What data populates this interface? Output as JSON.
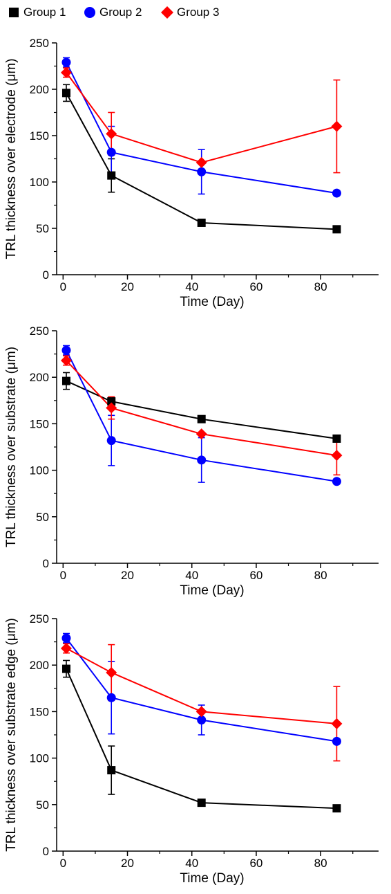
{
  "legend": [
    {
      "name": "Group 1",
      "marker": "square",
      "color": "#000000"
    },
    {
      "name": "Group 2",
      "marker": "circle",
      "color": "#0000ff"
    },
    {
      "name": "Group 3",
      "marker": "diamond",
      "color": "#ff0000"
    }
  ],
  "chart_data": [
    {
      "type": "line",
      "title": "",
      "xlabel": "Time (Day)",
      "ylabel": "TRL thickness over electrode (μm)",
      "xlim": [
        -2,
        98
      ],
      "ylim": [
        0,
        250
      ],
      "xticks": [
        0,
        20,
        40,
        60,
        80
      ],
      "yticks": [
        0,
        50,
        100,
        150,
        200,
        250
      ],
      "x": [
        1,
        15,
        43,
        85
      ],
      "series": [
        {
          "name": "Group 1",
          "color": "#000000",
          "marker": "square",
          "values": [
            196,
            107,
            56,
            49
          ],
          "err": [
            9,
            18,
            0,
            0
          ]
        },
        {
          "name": "Group 2",
          "color": "#0000ff",
          "marker": "circle",
          "values": [
            229,
            132,
            111,
            88
          ],
          "err": [
            5,
            28,
            24,
            0
          ]
        },
        {
          "name": "Group 3",
          "color": "#ff0000",
          "marker": "diamond",
          "values": [
            218,
            152,
            121,
            160
          ],
          "err": [
            5,
            23,
            0,
            50
          ]
        }
      ]
    },
    {
      "type": "line",
      "title": "",
      "xlabel": "Time (Day)",
      "ylabel": "TRL thickness over substrate (μm)",
      "xlim": [
        -2,
        98
      ],
      "ylim": [
        0,
        250
      ],
      "xticks": [
        0,
        20,
        40,
        60,
        80
      ],
      "yticks": [
        0,
        50,
        100,
        150,
        200,
        250
      ],
      "x": [
        1,
        15,
        43,
        85
      ],
      "series": [
        {
          "name": "Group 1",
          "color": "#000000",
          "marker": "square",
          "values": [
            196,
            174,
            155,
            134
          ],
          "err": [
            9,
            4,
            0,
            0
          ]
        },
        {
          "name": "Group 2",
          "color": "#0000ff",
          "marker": "circle",
          "values": [
            229,
            132,
            111,
            88
          ],
          "err": [
            5,
            27,
            24,
            0
          ]
        },
        {
          "name": "Group 3",
          "color": "#ff0000",
          "marker": "diamond",
          "values": [
            218,
            167,
            139,
            116
          ],
          "err": [
            5,
            12,
            0,
            21
          ]
        }
      ]
    },
    {
      "type": "line",
      "title": "",
      "xlabel": "Time (Day)",
      "ylabel": "TRL thickness over substrate edge (μm)",
      "xlim": [
        -2,
        98
      ],
      "ylim": [
        0,
        250
      ],
      "xticks": [
        0,
        20,
        40,
        60,
        80
      ],
      "yticks": [
        0,
        50,
        100,
        150,
        200,
        250
      ],
      "x": [
        1,
        15,
        43,
        85
      ],
      "series": [
        {
          "name": "Group 1",
          "color": "#000000",
          "marker": "square",
          "values": [
            196,
            87,
            52,
            46
          ],
          "err": [
            9,
            26,
            0,
            0
          ]
        },
        {
          "name": "Group 2",
          "color": "#0000ff",
          "marker": "circle",
          "values": [
            229,
            165,
            141,
            118
          ],
          "err": [
            5,
            39,
            16,
            0
          ]
        },
        {
          "name": "Group 3",
          "color": "#ff0000",
          "marker": "diamond",
          "values": [
            218,
            192,
            150,
            137
          ],
          "err": [
            5,
            30,
            0,
            40
          ]
        }
      ]
    }
  ]
}
